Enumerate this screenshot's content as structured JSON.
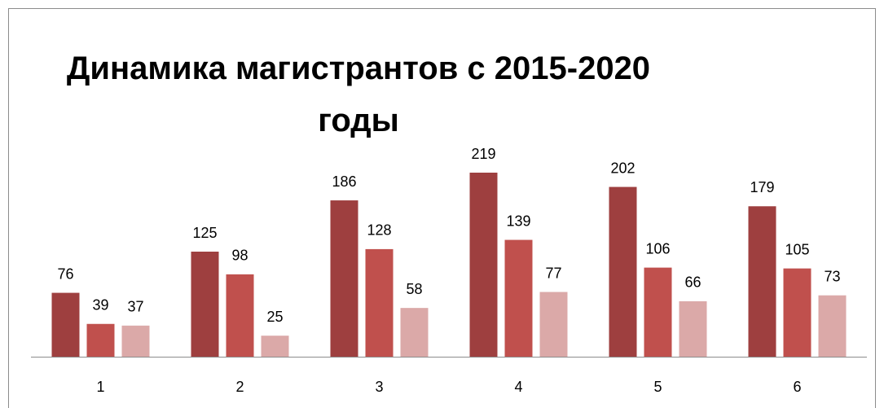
{
  "chart_data": {
    "type": "bar",
    "title": "Динамика магистрантов с 2015-2020 годы",
    "categories": [
      "1",
      "2",
      "3",
      "4",
      "5",
      "6"
    ],
    "series": [
      {
        "color": "#9e3f3f",
        "values": [
          76,
          125,
          186,
          219,
          202,
          179
        ]
      },
      {
        "color": "#c0504d",
        "values": [
          39,
          98,
          128,
          139,
          106,
          105
        ]
      },
      {
        "color": "#dba9a8",
        "values": [
          37,
          25,
          58,
          77,
          66,
          73
        ]
      }
    ]
  }
}
